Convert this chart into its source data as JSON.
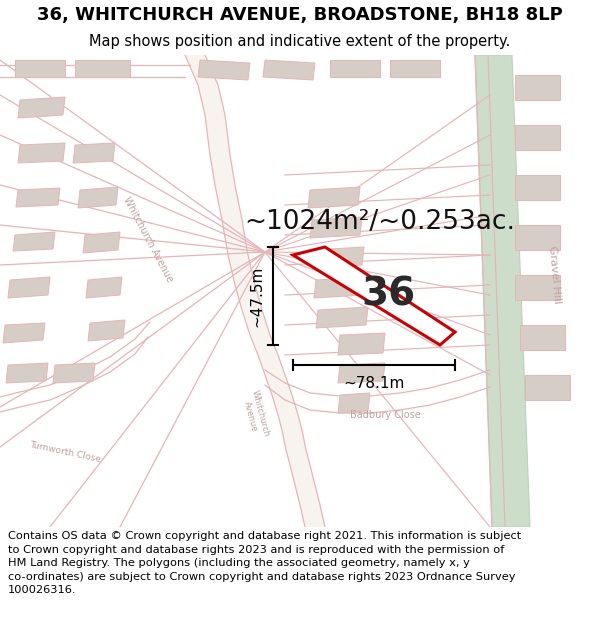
{
  "title": "36, WHITCHURCH AVENUE, BROADSTONE, BH18 8LP",
  "subtitle": "Map shows position and indicative extent of the property.",
  "footer_line1": "Contains OS data © Crown copyright and database right 2021. This information is subject",
  "footer_line2": "to Crown copyright and database rights 2023 and is reproduced with the permission of",
  "footer_line3": "HM Land Registry. The polygons (including the associated geometry, namely x, y",
  "footer_line4": "co-ordinates) are subject to Crown copyright and database rights 2023 Ordnance Survey",
  "footer_line5": "100026316.",
  "area_text": "~1024m²/~0.253ac.",
  "width_text": "~78.1m",
  "height_text": "~47.5m",
  "property_number": "36",
  "map_bg": "#f7f4f0",
  "road_fill": "#f7f4f0",
  "road_edge": "#e8b4b4",
  "building_fill": "#d6cec6",
  "building_edge": "#e8b4b4",
  "green_fill": "#ccdeca",
  "green_edge": "#b8d4b6",
  "property_fill": "#ffffff",
  "property_edge": "#cc0000",
  "dim_color": "#111111",
  "label_color": "#c0a0a0",
  "area_color": "#111111",
  "title_fontsize": 13,
  "subtitle_fontsize": 10.5,
  "footer_fontsize": 8.2,
  "area_fontsize": 19,
  "number_fontsize": 28,
  "dim_fontsize": 11,
  "label_fontsize": 7
}
